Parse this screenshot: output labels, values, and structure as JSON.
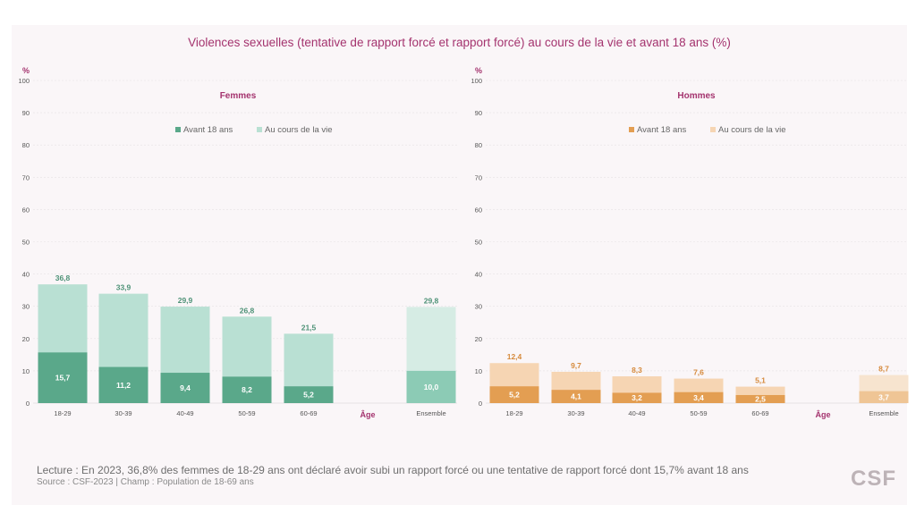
{
  "title": "Violences sexuelles (tentative de rapport forcé et rapport forcé) au cours de la vie et avant 18 ans (%)",
  "lecture": "Lecture : En 2023, 36,8% des femmes de 18-29 ans ont déclaré avoir subi un rapport forcé ou une tentative de rapport forcé dont  15,7% avant 18 ans",
  "source": "Source : CSF-2023 | Champ : Population de 18-69 ans",
  "logo": "CSF",
  "chart_data": [
    {
      "type": "bar",
      "title": "Femmes",
      "ylabel": "%",
      "xlabel": "Âge",
      "ylim": [
        0,
        100
      ],
      "yticks": [
        0,
        10,
        20,
        30,
        40,
        50,
        60,
        70,
        80,
        90,
        100
      ],
      "categories": [
        "18-29",
        "30-39",
        "40-49",
        "50-59",
        "60-69",
        "Ensemble"
      ],
      "series": [
        {
          "name": "Avant 18 ans",
          "values": [
            15.7,
            11.2,
            9.4,
            8.2,
            5.2,
            10.0
          ],
          "labels": [
            "15,7",
            "11,2",
            "9,4",
            "8,2",
            "5,2",
            "10,0"
          ]
        },
        {
          "name": "Au cours de la vie",
          "values": [
            36.8,
            33.9,
            29.9,
            26.8,
            21.5,
            29.8
          ],
          "labels": [
            "36,8",
            "33,9",
            "29,9",
            "26,8",
            "21,5",
            "29,8"
          ]
        }
      ],
      "colors": {
        "inner": "#5aa88a",
        "outer": "#b9e0d3",
        "inner_total": "#8ccbb5",
        "outer_total": "#d6ece4",
        "label_inner": "#ffffff",
        "label_outer": "#4e9277"
      }
    },
    {
      "type": "bar",
      "title": "Hommes",
      "ylabel": "%",
      "xlabel": "Âge",
      "ylim": [
        0,
        100
      ],
      "yticks": [
        0,
        10,
        20,
        30,
        40,
        50,
        60,
        70,
        80,
        90,
        100
      ],
      "categories": [
        "18-29",
        "30-39",
        "40-49",
        "50-59",
        "60-69",
        "Ensemble"
      ],
      "series": [
        {
          "name": "Avant 18 ans",
          "values": [
            5.2,
            4.1,
            3.2,
            3.4,
            2.5,
            3.7
          ],
          "labels": [
            "5,2",
            "4,1",
            "3,2",
            "3,4",
            "2,5",
            "3,7"
          ]
        },
        {
          "name": "Au cours de la vie",
          "values": [
            12.4,
            9.7,
            8.3,
            7.6,
            5.1,
            8.7
          ],
          "labels": [
            "12,4",
            "9,7",
            "8,3",
            "7,6",
            "5,1",
            "8,7"
          ]
        }
      ],
      "colors": {
        "inner": "#e39e52",
        "outer": "#f6d5b3",
        "inner_total": "#efc595",
        "outer_total": "#f7e4cf",
        "label_inner": "#ffffff",
        "label_outer": "#d68a3c"
      }
    }
  ]
}
